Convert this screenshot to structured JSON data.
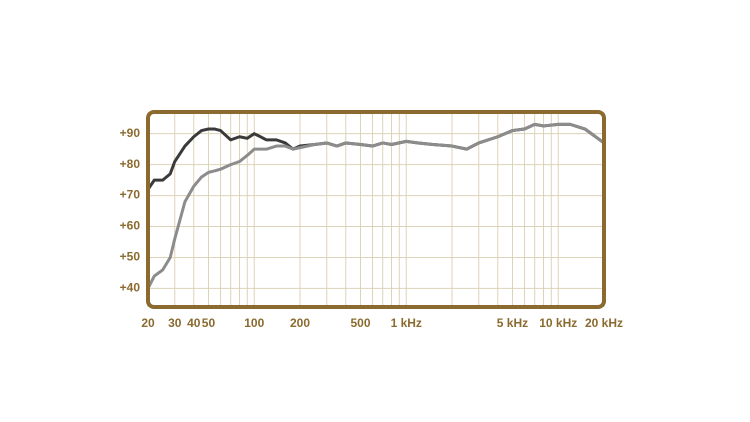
{
  "chart_data": {
    "type": "line",
    "x": [
      20,
      22,
      25,
      28,
      30,
      35,
      40,
      45,
      50,
      55,
      60,
      70,
      80,
      90,
      100,
      110,
      120,
      140,
      160,
      180,
      200,
      250,
      300,
      350,
      400,
      500,
      600,
      700,
      800,
      1000,
      1200,
      1500,
      2000,
      2500,
      3000,
      4000,
      5000,
      6000,
      7000,
      8000,
      10000,
      12000,
      15000,
      20000
    ],
    "series": [
      {
        "color": "#3a3a3a",
        "values": [
          72,
          75,
          75,
          77,
          81,
          86,
          89,
          91,
          91.5,
          91.5,
          91,
          88,
          89,
          88.5,
          90,
          89,
          88,
          88,
          87,
          85,
          86,
          86.5,
          87,
          86,
          87,
          86.5,
          86,
          87,
          86.5,
          87.5,
          87,
          86.5,
          86,
          85,
          87,
          89,
          91,
          91.5,
          93,
          92.5,
          93,
          93,
          91.5,
          87
        ]
      },
      {
        "color": "#8c8c8c",
        "values": [
          40,
          44,
          46,
          50,
          56,
          68,
          73,
          76,
          77.5,
          78,
          78.5,
          80,
          81,
          83,
          85,
          85,
          85,
          86,
          86,
          85,
          85.5,
          86.5,
          87,
          86,
          87,
          86.5,
          86,
          87,
          86.5,
          87.5,
          87,
          86.5,
          86,
          85,
          87,
          89,
          91,
          91.5,
          93,
          92.5,
          93,
          93,
          91.5,
          87
        ]
      }
    ],
    "xscale": "log",
    "xlim": [
      20,
      20000
    ],
    "ylim": [
      34,
      97
    ],
    "xticks": [
      20,
      30,
      40,
      50,
      100,
      200,
      500,
      {
        "value": 1000,
        "label": "1 kHz"
      },
      {
        "value": 5000,
        "label": "5 kHz"
      },
      {
        "value": 10000,
        "label": "10 kHz"
      },
      {
        "value": 20000,
        "label": "20 kHz"
      }
    ],
    "xminorticks": [
      60,
      70,
      80,
      90,
      300,
      400,
      600,
      700,
      800,
      900,
      2000,
      3000,
      4000,
      6000,
      7000,
      8000,
      9000
    ],
    "yticks": [
      {
        "value": 90,
        "label": "+90"
      },
      {
        "value": 80,
        "label": "+80"
      },
      {
        "value": 70,
        "label": "+70"
      },
      {
        "value": 60,
        "label": "+60"
      },
      {
        "value": 50,
        "label": "+50"
      },
      {
        "value": 40,
        "label": "+40"
      }
    ],
    "grid": true
  }
}
